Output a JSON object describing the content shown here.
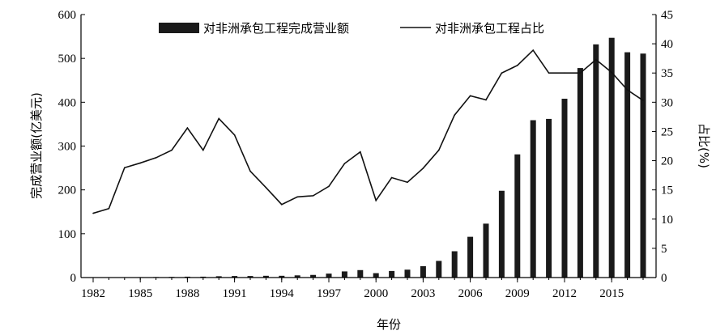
{
  "chart_data": {
    "type": "bar+line",
    "x_title": "年份",
    "y_left_title": "完成营业额(亿美元)",
    "y_right_title": "占比(%)",
    "x_ticks": [
      "1982",
      "1985",
      "1988",
      "1991",
      "1994",
      "1997",
      "2000",
      "2003",
      "2006",
      "2009",
      "2012",
      "2015"
    ],
    "y_left_ticks": [
      "0",
      "100",
      "200",
      "300",
      "400",
      "500",
      "600"
    ],
    "y_right_ticks": [
      "0",
      "5",
      "10",
      "15",
      "20",
      "25",
      "30",
      "35",
      "40",
      "45"
    ],
    "ylim_left": [
      0,
      600
    ],
    "ylim_right": [
      0,
      45
    ],
    "legend": {
      "placement": "top",
      "bar_label": "对非洲承包工程完成营业额",
      "line_label": "对非洲承包工程占比"
    },
    "years": [
      1982,
      1983,
      1984,
      1985,
      1986,
      1987,
      1988,
      1989,
      1990,
      1991,
      1992,
      1993,
      1994,
      1995,
      1996,
      1997,
      1998,
      1999,
      2000,
      2001,
      2002,
      2003,
      2004,
      2005,
      2006,
      2007,
      2008,
      2009,
      2010,
      2011,
      2012,
      2013,
      2014,
      2015,
      2016,
      2017
    ],
    "series": [
      {
        "name": "对非洲承包工程完成营业额",
        "type": "bar",
        "axis": "left",
        "values": [
          0.5,
          0.5,
          0.8,
          1,
          1.2,
          1.5,
          2,
          2,
          3,
          3.5,
          3.5,
          4,
          4,
          5,
          6,
          9,
          14,
          17,
          10,
          15,
          18,
          26,
          38,
          60,
          93,
          123,
          198,
          281,
          359,
          362,
          408,
          478,
          532,
          547,
          514,
          511
        ]
      },
      {
        "name": "对非洲承包工程占比",
        "type": "line",
        "axis": "right",
        "values": [
          11,
          11.8,
          18.8,
          19.6,
          20.5,
          21.8,
          25.6,
          21.8,
          27.2,
          24.4,
          18.2,
          15.4,
          12.5,
          13.8,
          14,
          15.6,
          19.5,
          21.5,
          13.2,
          17.1,
          16.3,
          18.7,
          21.8,
          27.8,
          31.1,
          30.4,
          35,
          36.3,
          38.9,
          35,
          35,
          35,
          37.3,
          35.1,
          32.1,
          30.3
        ]
      }
    ]
  }
}
